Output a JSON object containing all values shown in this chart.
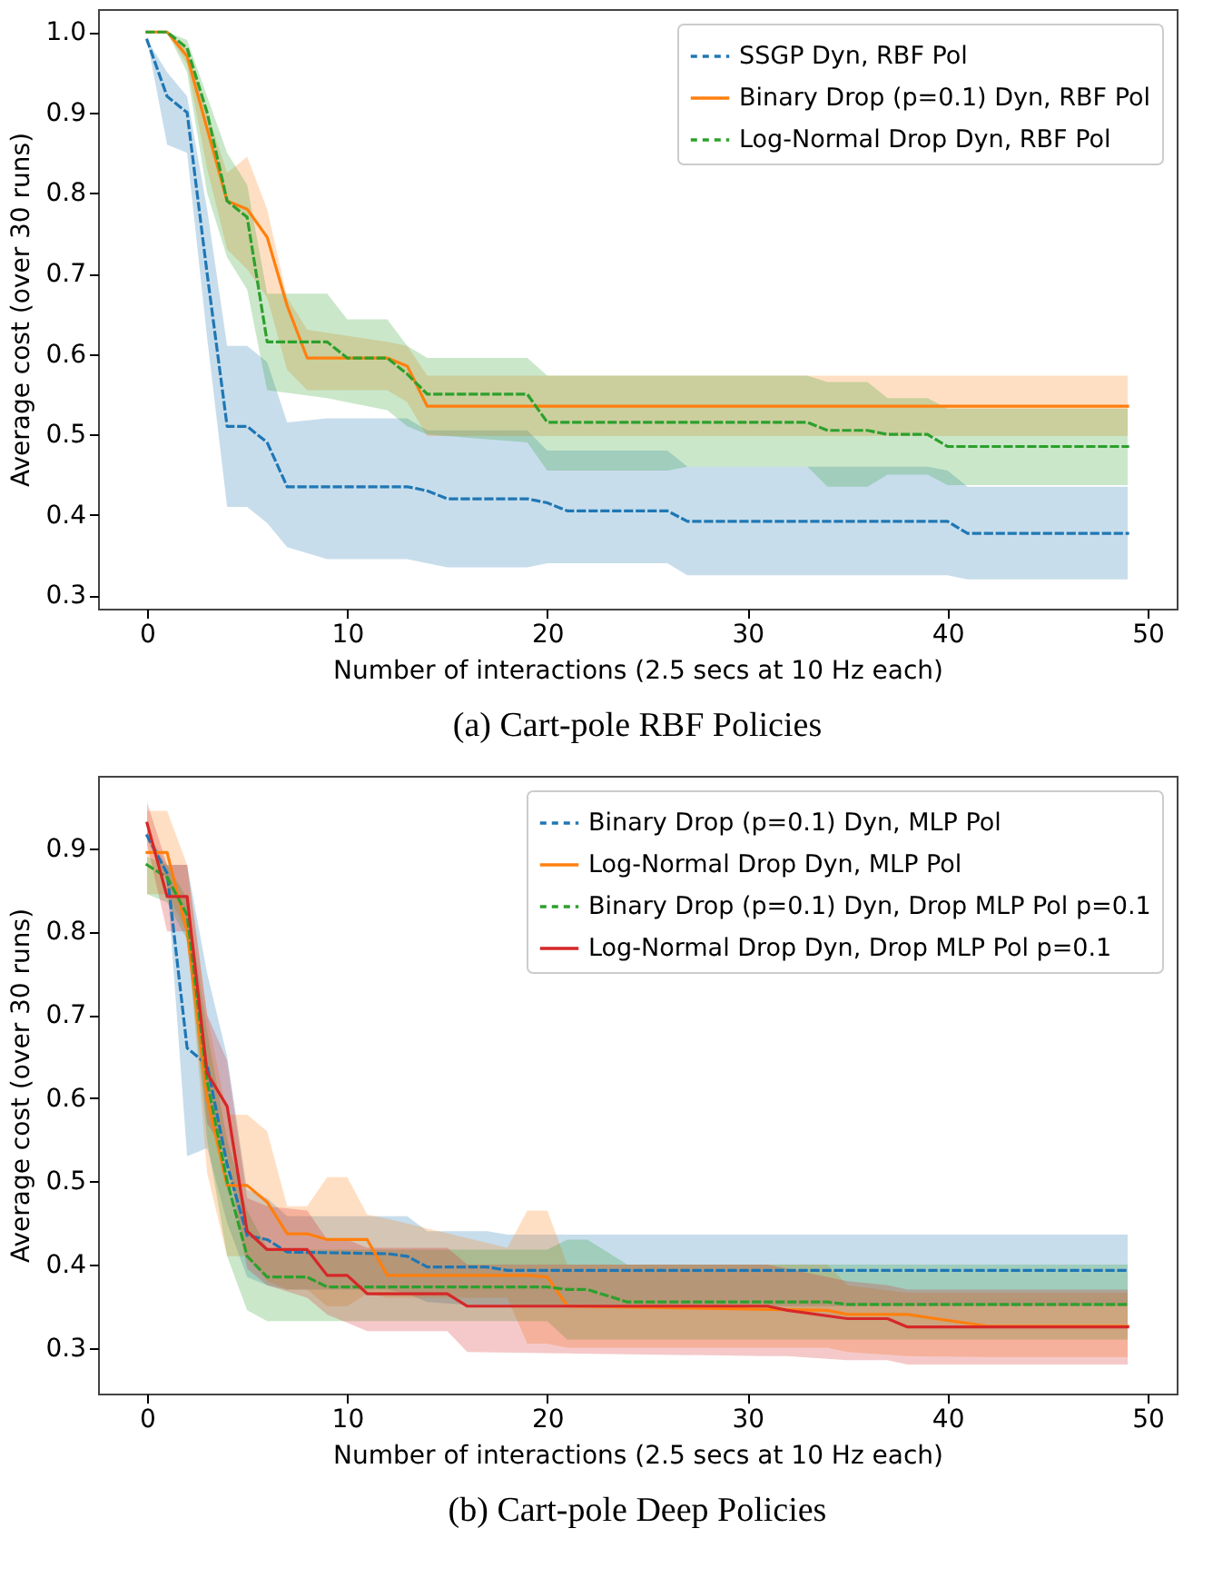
{
  "chart_data": [
    {
      "type": "line",
      "title": "(a) Cart-pole RBF Policies",
      "xlabel": "Number of interactions (2.5 secs at 10 Hz each)",
      "ylabel": "Average cost (over 30 runs)",
      "xlim": [
        -2.45,
        51.45
      ],
      "ylim": [
        0.2835,
        1.0285
      ],
      "xticks": [
        0,
        10,
        20,
        30,
        40,
        50
      ],
      "yticks": [
        0.3,
        0.4,
        0.5,
        0.6,
        0.7,
        0.8,
        0.9,
        {
          "value": 1,
          "label": "1.0"
        }
      ],
      "legend": "top right",
      "series": [
        {
          "name": "SSGP Dyn, RBF Pol",
          "color": "#1f77b4",
          "line_style": "dashed",
          "x": [
            0,
            1,
            2,
            3,
            4,
            5,
            6,
            7,
            9,
            13,
            14,
            15,
            19,
            20,
            21,
            26,
            27,
            39,
            40,
            41,
            49
          ],
          "values": [
            0.99,
            0.92,
            0.9,
            0.7,
            0.51,
            0.51,
            0.49,
            0.435,
            0.435,
            0.435,
            0.43,
            0.42,
            0.42,
            0.415,
            0.405,
            0.405,
            0.392,
            0.392,
            0.392,
            0.377,
            0.377
          ],
          "upper": [
            0.99,
            0.95,
            0.92,
            0.78,
            0.61,
            0.61,
            0.59,
            0.515,
            0.52,
            0.52,
            0.505,
            0.505,
            0.505,
            0.48,
            0.48,
            0.48,
            0.46,
            0.46,
            0.455,
            0.435,
            0.435
          ],
          "lower": [
            0.99,
            0.86,
            0.85,
            0.62,
            0.41,
            0.41,
            0.39,
            0.36,
            0.345,
            0.345,
            0.34,
            0.335,
            0.335,
            0.34,
            0.34,
            0.34,
            0.325,
            0.325,
            0.325,
            0.32,
            0.32
          ]
        },
        {
          "name": "Binary Drop (p=0.1) Dyn, RBF Pol",
          "color": "#ff7f0e",
          "line_style": "solid",
          "x": [
            0,
            1,
            2,
            3,
            4,
            5,
            6,
            7,
            8,
            12,
            13,
            14,
            49
          ],
          "values": [
            1.0,
            1.0,
            0.97,
            0.88,
            0.79,
            0.78,
            0.745,
            0.66,
            0.595,
            0.595,
            0.585,
            0.535,
            0.535
          ],
          "upper": [
            1.0,
            1.0,
            0.98,
            0.9,
            0.825,
            0.845,
            0.78,
            0.67,
            0.63,
            0.615,
            0.61,
            0.573,
            0.573
          ],
          "lower": [
            1.0,
            1.0,
            0.96,
            0.83,
            0.73,
            0.705,
            0.67,
            0.58,
            0.555,
            0.555,
            0.54,
            0.498,
            0.498
          ]
        },
        {
          "name": "Log-Normal Drop Dyn, RBF Pol",
          "color": "#2ca02c",
          "line_style": "dashed",
          "x": [
            0,
            1,
            2,
            3,
            4,
            5,
            6,
            9,
            10,
            12,
            13,
            14,
            19,
            20,
            26,
            27,
            33,
            34,
            36,
            37,
            39,
            40,
            49
          ],
          "values": [
            1.0,
            1.0,
            0.98,
            0.9,
            0.79,
            0.77,
            0.615,
            0.615,
            0.595,
            0.595,
            0.575,
            0.55,
            0.55,
            0.515,
            0.515,
            0.515,
            0.515,
            0.505,
            0.505,
            0.5,
            0.5,
            0.485,
            0.485
          ],
          "upper": [
            1.0,
            1.0,
            0.99,
            0.92,
            0.85,
            0.81,
            0.675,
            0.675,
            0.643,
            0.643,
            0.61,
            0.595,
            0.595,
            0.573,
            0.573,
            0.573,
            0.573,
            0.565,
            0.565,
            0.545,
            0.545,
            0.532,
            0.532
          ],
          "lower": [
            1.0,
            1.0,
            0.95,
            0.8,
            0.72,
            0.68,
            0.555,
            0.545,
            0.54,
            0.53,
            0.51,
            0.5,
            0.49,
            0.455,
            0.455,
            0.46,
            0.46,
            0.435,
            0.435,
            0.45,
            0.45,
            0.437,
            0.437
          ]
        }
      ]
    },
    {
      "type": "line",
      "title": "(b) Cart-pole Deep Policies",
      "xlabel": "Number of interactions (2.5 secs at 10 Hz each)",
      "ylabel": "Average cost (over 30 runs)",
      "xlim": [
        -2.45,
        51.45
      ],
      "ylim": [
        0.245,
        0.987
      ],
      "xticks": [
        0,
        10,
        20,
        30,
        40,
        50
      ],
      "yticks": [
        0.3,
        0.4,
        0.5,
        0.6,
        0.7,
        0.8,
        0.9
      ],
      "legend": "top right",
      "series": [
        {
          "name": "Binary Drop (p=0.1) Dyn, MLP Pol",
          "color": "#1f77b4",
          "line_style": "dashed",
          "x": [
            0,
            1,
            2,
            3,
            4,
            5,
            6,
            7,
            12,
            13,
            14,
            17,
            18,
            49
          ],
          "values": [
            0.915,
            0.87,
            0.66,
            0.64,
            0.52,
            0.435,
            0.43,
            0.415,
            0.413,
            0.41,
            0.397,
            0.397,
            0.393,
            0.393
          ],
          "upper": [
            0.92,
            0.88,
            0.88,
            0.75,
            0.65,
            0.49,
            0.48,
            0.458,
            0.458,
            0.458,
            0.44,
            0.44,
            0.436,
            0.436
          ],
          "lower": [
            0.91,
            0.86,
            0.53,
            0.54,
            0.45,
            0.385,
            0.375,
            0.37,
            0.37,
            0.365,
            0.355,
            0.35,
            0.35,
            0.35
          ]
        },
        {
          "name": "Log-Normal Drop Dyn, MLP Pol",
          "color": "#ff7f0e",
          "line_style": "solid",
          "x": [
            0,
            1,
            2,
            3,
            4,
            5,
            6,
            7,
            8,
            9,
            10,
            11,
            12,
            18,
            19,
            20,
            21,
            34,
            35,
            38,
            42,
            49
          ],
          "values": [
            0.895,
            0.895,
            0.8,
            0.6,
            0.495,
            0.495,
            0.475,
            0.437,
            0.437,
            0.43,
            0.43,
            0.43,
            0.387,
            0.387,
            0.387,
            0.385,
            0.35,
            0.345,
            0.34,
            0.34,
            0.326,
            0.326
          ],
          "upper": [
            0.945,
            0.945,
            0.88,
            0.7,
            0.58,
            0.58,
            0.56,
            0.47,
            0.47,
            0.505,
            0.505,
            0.46,
            0.455,
            0.42,
            0.465,
            0.465,
            0.4,
            0.4,
            0.375,
            0.366,
            0.366,
            0.366
          ],
          "lower": [
            0.845,
            0.845,
            0.8,
            0.51,
            0.41,
            0.41,
            0.38,
            0.37,
            0.37,
            0.35,
            0.35,
            0.365,
            0.36,
            0.36,
            0.305,
            0.305,
            0.3,
            0.3,
            0.295,
            0.29,
            0.289,
            0.289
          ]
        },
        {
          "name": "Binary Drop (p=0.1) Dyn, Drop MLP Pol p=0.1",
          "color": "#2ca02c",
          "line_style": "dashed",
          "x": [
            0,
            1,
            2,
            3,
            4,
            5,
            6,
            8,
            9,
            20,
            21,
            22,
            24,
            34,
            35,
            49
          ],
          "values": [
            0.88,
            0.865,
            0.82,
            0.62,
            0.5,
            0.41,
            0.385,
            0.385,
            0.373,
            0.373,
            0.37,
            0.37,
            0.355,
            0.355,
            0.352,
            0.352
          ],
          "upper": [
            0.89,
            0.88,
            0.84,
            0.68,
            0.55,
            0.465,
            0.42,
            0.418,
            0.418,
            0.418,
            0.43,
            0.43,
            0.4,
            0.4,
            0.4,
            0.4
          ],
          "lower": [
            0.845,
            0.835,
            0.79,
            0.55,
            0.41,
            0.345,
            0.332,
            0.332,
            0.332,
            0.332,
            0.31,
            0.31,
            0.31,
            0.31,
            0.31,
            0.31
          ]
        },
        {
          "name": "Log-Normal Drop Dyn, Drop MLP Pol p=0.1",
          "color": "#d62728",
          "line_style": "solid",
          "x": [
            0,
            1,
            2,
            3,
            4,
            5,
            6,
            8,
            9,
            10,
            11,
            15,
            16,
            31,
            32,
            35,
            37,
            38,
            49
          ],
          "values": [
            0.93,
            0.842,
            0.842,
            0.63,
            0.59,
            0.44,
            0.418,
            0.418,
            0.387,
            0.387,
            0.365,
            0.365,
            0.35,
            0.35,
            0.345,
            0.335,
            0.335,
            0.325,
            0.325
          ],
          "upper": [
            0.955,
            0.88,
            0.88,
            0.7,
            0.645,
            0.48,
            0.47,
            0.465,
            0.43,
            0.43,
            0.42,
            0.42,
            0.4,
            0.4,
            0.395,
            0.38,
            0.375,
            0.37,
            0.37
          ],
          "lower": [
            0.905,
            0.8,
            0.8,
            0.57,
            0.53,
            0.395,
            0.375,
            0.36,
            0.34,
            0.33,
            0.32,
            0.32,
            0.295,
            0.29,
            0.29,
            0.285,
            0.285,
            0.28,
            0.28
          ]
        }
      ]
    }
  ]
}
